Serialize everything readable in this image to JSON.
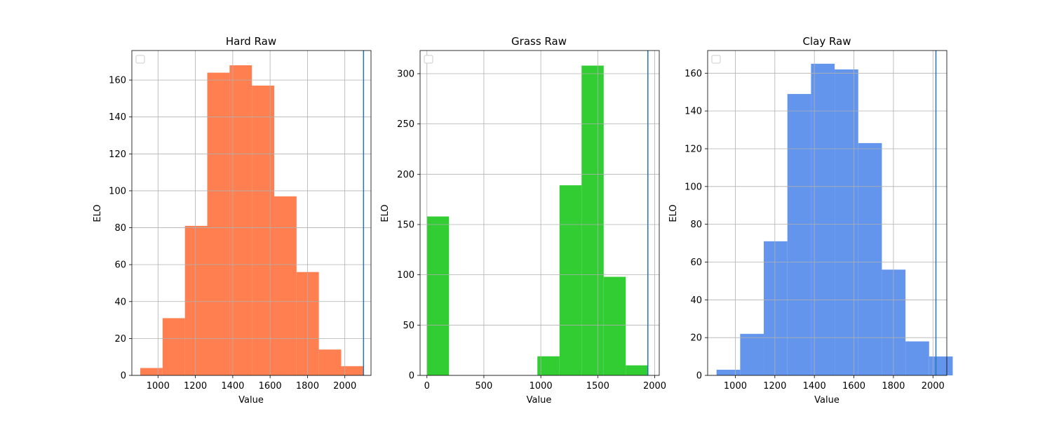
{
  "chart_data": [
    {
      "type": "bar",
      "title": "Hard Raw",
      "xlabel": "Value",
      "ylabel": "ELO",
      "xlim": [
        860,
        2140
      ],
      "ylim": [
        0,
        176
      ],
      "grid": true,
      "legend": "top-left (empty)",
      "bar_color": "#FF7F50",
      "vline": {
        "x": 2100,
        "color": "#1f77b4"
      },
      "xticks": [
        1000,
        1200,
        1400,
        1600,
        1800,
        2000
      ],
      "yticks": [
        0,
        20,
        40,
        60,
        80,
        100,
        120,
        140,
        160
      ],
      "bin_edges": [
        905,
        1024.5,
        1144,
        1263.5,
        1383,
        1502.5,
        1622,
        1741.5,
        1861,
        1980.5,
        2100
      ],
      "values": [
        4,
        31,
        81,
        164,
        168,
        157,
        97,
        56,
        14,
        5
      ]
    },
    {
      "type": "bar",
      "title": "Grass Raw",
      "xlabel": "Value",
      "ylabel": "ELO",
      "xlim": [
        -60,
        2040
      ],
      "ylim": [
        0,
        323
      ],
      "grid": true,
      "legend": "top-left (empty)",
      "bar_color": "#32CD32",
      "vline": {
        "x": 1940,
        "color": "#1f77b4"
      },
      "xticks": [
        0,
        500,
        1000,
        1500,
        2000
      ],
      "yticks": [
        0,
        50,
        100,
        150,
        200,
        250,
        300
      ],
      "bin_edges": [
        0,
        194,
        388,
        582,
        776,
        970,
        1164,
        1358,
        1552,
        1746,
        1940
      ],
      "values": [
        158,
        0,
        0,
        0,
        0,
        19,
        189,
        308,
        98,
        10
      ]
    },
    {
      "type": "bar",
      "title": "Clay Raw",
      "xlabel": "Value",
      "ylabel": "ELO",
      "xlim": [
        860,
        2070
      ],
      "ylim": [
        0,
        172
      ],
      "grid": true,
      "legend": "top-left (empty)",
      "bar_color": "#6495ED",
      "vline": {
        "x": 2015,
        "color": "#1f77b4"
      },
      "xticks": [
        1000,
        1200,
        1400,
        1600,
        1800,
        2000
      ],
      "yticks": [
        0,
        20,
        40,
        60,
        80,
        100,
        120,
        140,
        160
      ],
      "bin_edges": [
        905,
        1024.5,
        1144,
        1263.5,
        1383,
        1502.5,
        1622,
        1741.5,
        1861,
        1980.5,
        2100
      ],
      "values": [
        3,
        22,
        71,
        149,
        165,
        162,
        123,
        56,
        18,
        10
      ]
    }
  ]
}
